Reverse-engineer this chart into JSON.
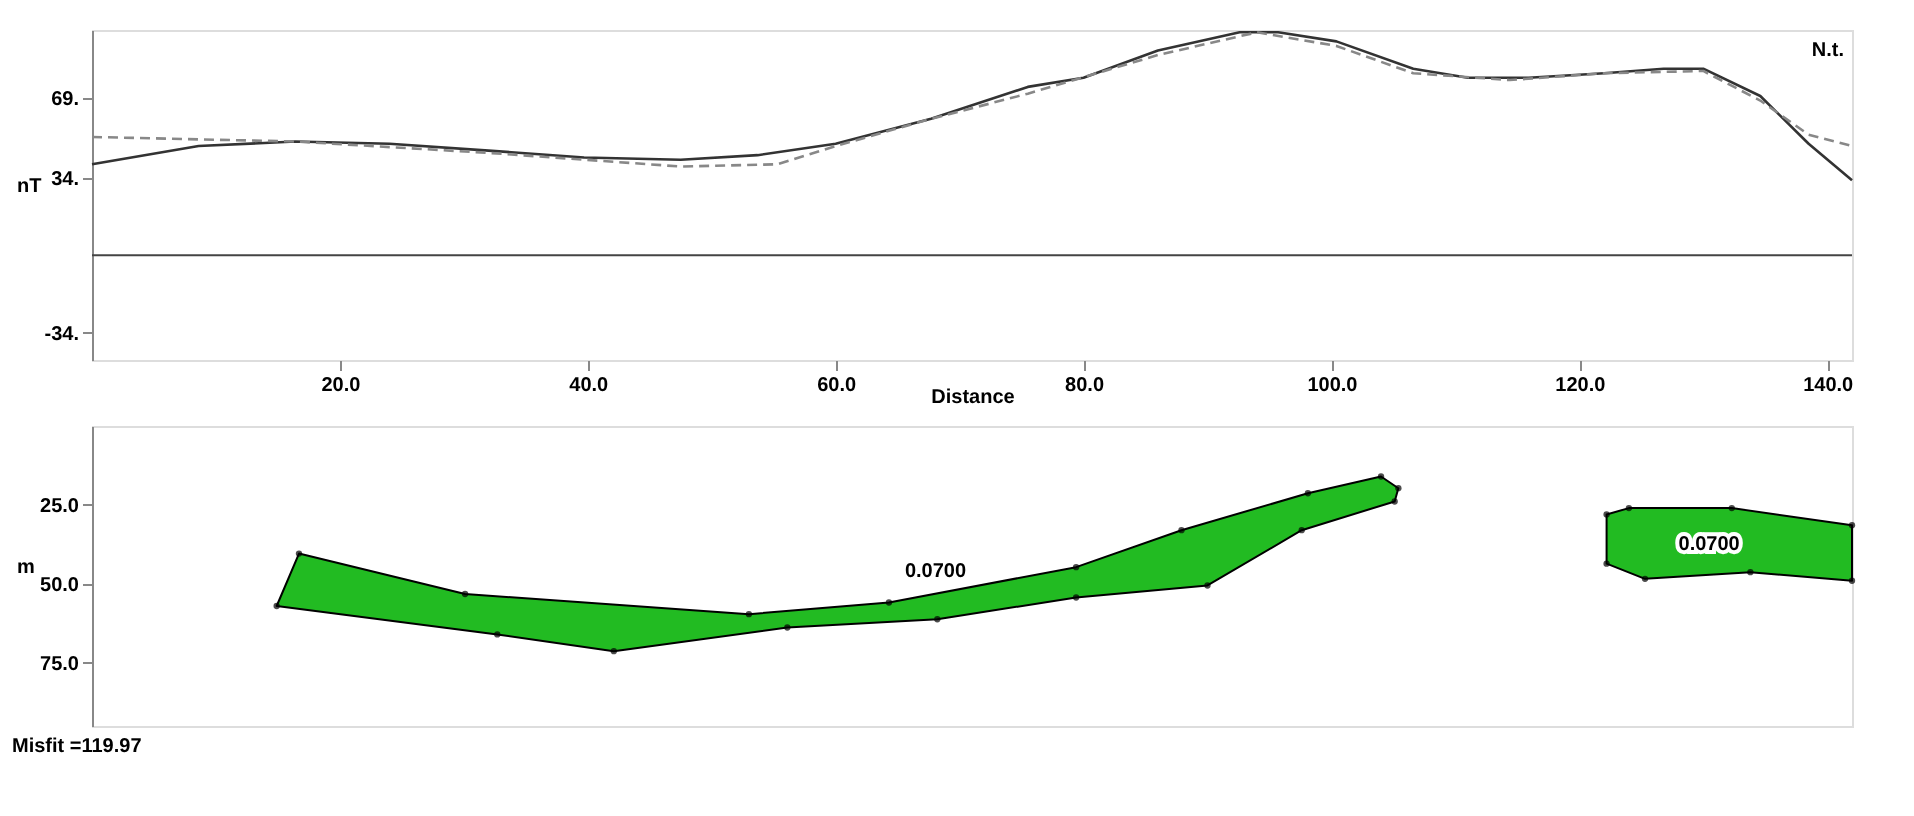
{
  "chart_data": [
    {
      "type": "line",
      "xlabel": "Distance",
      "ylabel": "nT",
      "xlim": [
        0,
        142
      ],
      "xticks": [
        {
          "value": 20,
          "label": "20.0"
        },
        {
          "value": 40,
          "label": "40.0"
        },
        {
          "value": 60,
          "label": "60.0"
        },
        {
          "value": 80,
          "label": "80.0"
        },
        {
          "value": 100,
          "label": "100.0"
        },
        {
          "value": 120,
          "label": "120.0"
        },
        {
          "value": 140,
          "label": "140.0"
        }
      ],
      "ylim": [
        -46,
        99
      ],
      "yticks": [
        {
          "value": -34,
          "label": "-34."
        },
        {
          "value": 34,
          "label": "34."
        },
        {
          "value": 69,
          "label": "69."
        }
      ],
      "grid": false,
      "ref_lines": [
        {
          "axis": "y",
          "value": 0,
          "color": "#444444"
        }
      ],
      "annotations": [
        "N.t."
      ],
      "series": [
        {
          "color": "#333333",
          "line_style": "solid",
          "x": [
            0,
            8.6,
            16.4,
            24,
            32,
            39.7,
            47.5,
            53.7,
            60,
            67.7,
            75.5,
            80,
            86,
            92.6,
            95.7,
            100.4,
            106.6,
            111,
            115.9,
            122,
            126.8,
            130,
            134.6,
            138.5,
            142
          ],
          "values": [
            40,
            48,
            50,
            49,
            46,
            43,
            42,
            44,
            49,
            60,
            74,
            78,
            90,
            98,
            98,
            94,
            82,
            78,
            78,
            80,
            82,
            82,
            70,
            49,
            33
          ]
        },
        {
          "color": "#888888",
          "line_style": "dashed",
          "x": [
            0,
            16.4,
            32,
            47.5,
            55.3,
            60,
            67.7,
            75.5,
            86,
            94,
            100.4,
            106.6,
            114.4,
            122,
            130,
            134.6,
            138.5,
            142
          ],
          "values": [
            52,
            50,
            45,
            39,
            40,
            48,
            60,
            71,
            88,
            98,
            92,
            80,
            77,
            80,
            81,
            68,
            53,
            48
          ]
        }
      ]
    },
    {
      "type": "area",
      "ylabel": "m",
      "xlim": [
        0,
        142
      ],
      "ylim": [
        95,
        0
      ],
      "yticks": [
        {
          "value": 25,
          "label": "25.0"
        },
        {
          "value": 50,
          "label": "50.0"
        },
        {
          "value": 75,
          "label": "75.0"
        }
      ],
      "tick_labels": "y",
      "grid": false,
      "marker": "circle",
      "annotations": [
        "0.0700",
        "0.0700",
        "Misfit =119.97"
      ],
      "series": [
        {
          "color": "#22bb22",
          "x": [
            16.7,
            30.1,
            53.0,
            64.3,
            79.4,
            87.9,
            98.1,
            104.0,
            105.4,
            105.1,
            97.6,
            90.0,
            79.4,
            68.2,
            56.1,
            42.1,
            32.7,
            14.9
          ],
          "values": [
            40.4,
            53.2,
            59.6,
            55.9,
            44.7,
            33.0,
            21.3,
            16.0,
            19.7,
            23.9,
            33.0,
            50.5,
            54.3,
            61.2,
            63.8,
            71.3,
            66.0,
            57.0
          ]
        },
        {
          "color": "#22bb22",
          "x": [
            122.2,
            124,
            132.3,
            142,
            142,
            133.8,
            125.3,
            122.2
          ],
          "values": [
            28,
            26,
            26,
            31.4,
            49,
            46.3,
            48.4,
            43.6
          ]
        }
      ]
    }
  ]
}
